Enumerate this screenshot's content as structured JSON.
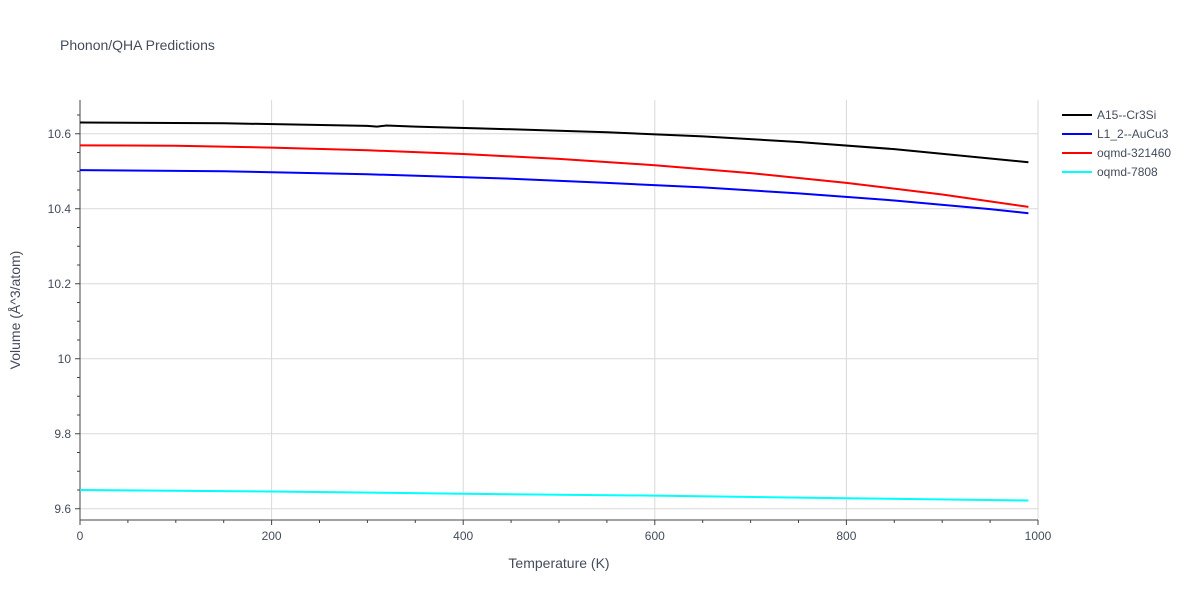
{
  "chart_data": {
    "type": "line",
    "title": "Phonon/QHA Predictions",
    "xlabel": "Temperature (K)",
    "ylabel": "Volume (Å^3/atom)",
    "xlim": [
      0,
      1000
    ],
    "ylim": [
      9.57,
      10.69
    ],
    "xticks": [
      0,
      200,
      400,
      600,
      800,
      1000
    ],
    "yticks": [
      9.6,
      9.8,
      10,
      10.2,
      10.4,
      10.6
    ],
    "grid": true,
    "legend_position": "top-right",
    "series": [
      {
        "name": "A15--Cr3Si",
        "color": "#000000",
        "x": [
          0,
          150,
          300,
          310,
          320,
          350,
          450,
          550,
          650,
          750,
          850,
          990
        ],
        "y": [
          10.63,
          10.628,
          10.621,
          10.619,
          10.622,
          10.619,
          10.612,
          10.604,
          10.593,
          10.578,
          10.559,
          10.524
        ]
      },
      {
        "name": "L1_2--AuCu3",
        "color": "#0000ff",
        "x": [
          0,
          150,
          300,
          450,
          550,
          650,
          750,
          850,
          950,
          990
        ],
        "y": [
          10.503,
          10.5,
          10.492,
          10.48,
          10.469,
          10.457,
          10.441,
          10.422,
          10.399,
          10.388
        ]
      },
      {
        "name": "oqmd-321460",
        "color": "#ff0000",
        "x": [
          0,
          100,
          200,
          300,
          400,
          500,
          600,
          700,
          800,
          900,
          990
        ],
        "y": [
          10.569,
          10.568,
          10.563,
          10.556,
          10.546,
          10.533,
          10.516,
          10.495,
          10.469,
          10.438,
          10.405
        ]
      },
      {
        "name": "oqmd-7808",
        "color": "#00ffff",
        "x": [
          0,
          200,
          400,
          600,
          800,
          990
        ],
        "y": [
          9.65,
          9.646,
          9.64,
          9.635,
          9.628,
          9.622
        ]
      }
    ]
  }
}
